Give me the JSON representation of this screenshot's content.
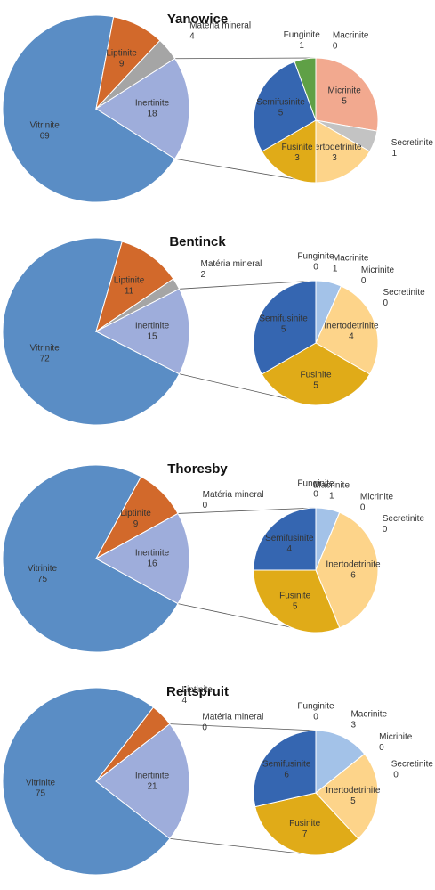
{
  "chart_data": [
    {
      "type": "pie",
      "title": "Yanowice",
      "categories": [
        "Vitrinite",
        "Liptinite",
        "Matéria mineral",
        "Inertinite"
      ],
      "values": [
        69,
        9,
        4,
        18
      ],
      "colors": [
        "#5a8dc5",
        "#d2692b",
        "#a5a5a5",
        "#9eaddb"
      ],
      "breakout": {
        "categories": [
          "Micrinite",
          "Secretinite",
          "Inertodetrinite",
          "Fusinite",
          "Semifusinite",
          "Funginite",
          "Macrinite"
        ],
        "values": [
          5,
          1,
          3,
          3,
          5,
          1,
          0
        ],
        "colors": [
          "#f2a98f",
          "#c3c3c3",
          "#fdd48a",
          "#e0ab18",
          "#3566b1",
          "#5fa046",
          "#a3c2e8"
        ]
      }
    },
    {
      "type": "pie",
      "title": "Bentinck",
      "categories": [
        "Vitrinite",
        "Liptinite",
        "Matéria mineral",
        "Inertinite"
      ],
      "values": [
        72,
        11,
        2,
        15
      ],
      "colors": [
        "#5a8dc5",
        "#d2692b",
        "#a5a5a5",
        "#9eaddb"
      ],
      "breakout": {
        "categories": [
          "Macrinite",
          "Micrinite",
          "Secretinite",
          "Inertodetrinite",
          "Fusinite",
          "Semifusinite",
          "Funginite"
        ],
        "values": [
          1,
          0,
          0,
          4,
          5,
          5,
          0
        ],
        "colors": [
          "#a3c2e8",
          "#f2a98f",
          "#c3c3c3",
          "#fdd48a",
          "#e0ab18",
          "#3566b1",
          "#5fa046"
        ]
      }
    },
    {
      "type": "pie",
      "title": "Thoresby",
      "categories": [
        "Vitrinite",
        "Liptinite",
        "Matéria mineral",
        "Inertinite"
      ],
      "values": [
        75,
        9,
        0,
        16
      ],
      "colors": [
        "#5a8dc5",
        "#d2692b",
        "#a5a5a5",
        "#9eaddb"
      ],
      "breakout": {
        "categories": [
          "Macrinite",
          "Micrinite",
          "Secretinite",
          "Inertodetrinite",
          "Fusinite",
          "Semifusinite",
          "Funginite"
        ],
        "values": [
          1,
          0,
          0,
          6,
          5,
          4,
          0
        ],
        "colors": [
          "#a3c2e8",
          "#f2a98f",
          "#c3c3c3",
          "#fdd48a",
          "#e0ab18",
          "#3566b1",
          "#5fa046"
        ]
      }
    },
    {
      "type": "pie",
      "title": "Reitspruit",
      "categories": [
        "Vitrinite",
        "Liptinite",
        "Matéria mineral",
        "Inertinite"
      ],
      "values": [
        75,
        4,
        0,
        21
      ],
      "colors": [
        "#5a8dc5",
        "#d2692b",
        "#a5a5a5",
        "#9eaddb"
      ],
      "breakout": {
        "categories": [
          "Macrinite",
          "Micrinite",
          "Secretinite",
          "Inertodetrinite",
          "Fusinite",
          "Semifusinite",
          "Funginite"
        ],
        "values": [
          3,
          0,
          0,
          5,
          7,
          6,
          0
        ],
        "colors": [
          "#a3c2e8",
          "#f2a98f",
          "#c3c3c3",
          "#fdd48a",
          "#e0ab18",
          "#3566b1",
          "#5fa046"
        ]
      }
    }
  ]
}
